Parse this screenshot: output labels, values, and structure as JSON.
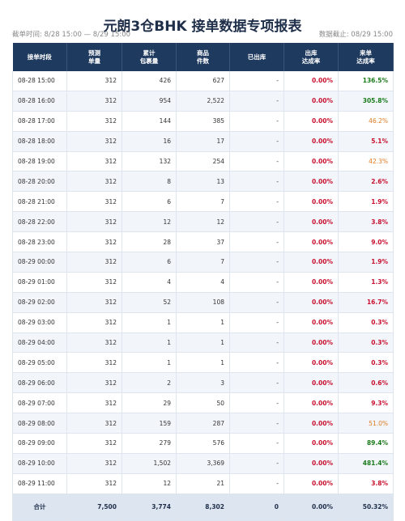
{
  "header": {
    "title": "元朗3仓BHK 接单数据专项报表",
    "period": "截单时间: 8/28 15:00 — 8/29 15:00",
    "cutoff": "数据截止: 08/29 15:00"
  },
  "table": {
    "headers": [
      [
        "接单时段"
      ],
      [
        "预测",
        "单量"
      ],
      [
        "累计",
        "包裹量"
      ],
      [
        "商品",
        "件数"
      ],
      [
        "已出库"
      ],
      [
        "出库",
        "达成率"
      ],
      [
        "来单",
        "达成率"
      ]
    ],
    "rows": [
      [
        "08-28 15:00",
        "312",
        "426",
        "627",
        "-",
        "0.00%",
        "136.5%"
      ],
      [
        "08-28 16:00",
        "312",
        "954",
        "2,522",
        "-",
        "0.00%",
        "305.8%"
      ],
      [
        "08-28 17:00",
        "312",
        "144",
        "385",
        "-",
        "0.00%",
        "46.2%"
      ],
      [
        "08-28 18:00",
        "312",
        "16",
        "17",
        "-",
        "0.00%",
        "5.1%"
      ],
      [
        "08-28 19:00",
        "312",
        "132",
        "254",
        "-",
        "0.00%",
        "42.3%"
      ],
      [
        "08-28 20:00",
        "312",
        "8",
        "13",
        "-",
        "0.00%",
        "2.6%"
      ],
      [
        "08-28 21:00",
        "312",
        "6",
        "7",
        "-",
        "0.00%",
        "1.9%"
      ],
      [
        "08-28 22:00",
        "312",
        "12",
        "12",
        "-",
        "0.00%",
        "3.8%"
      ],
      [
        "08-28 23:00",
        "312",
        "28",
        "37",
        "-",
        "0.00%",
        "9.0%"
      ],
      [
        "08-29 00:00",
        "312",
        "6",
        "7",
        "-",
        "0.00%",
        "1.9%"
      ],
      [
        "08-29 01:00",
        "312",
        "4",
        "4",
        "-",
        "0.00%",
        "1.3%"
      ],
      [
        "08-29 02:00",
        "312",
        "52",
        "108",
        "-",
        "0.00%",
        "16.7%"
      ],
      [
        "08-29 03:00",
        "312",
        "1",
        "1",
        "-",
        "0.00%",
        "0.3%"
      ],
      [
        "08-29 04:00",
        "312",
        "1",
        "1",
        "-",
        "0.00%",
        "0.3%"
      ],
      [
        "08-29 05:00",
        "312",
        "1",
        "1",
        "-",
        "0.00%",
        "0.3%"
      ],
      [
        "08-29 06:00",
        "312",
        "2",
        "3",
        "-",
        "0.00%",
        "0.6%"
      ],
      [
        "08-29 07:00",
        "312",
        "29",
        "50",
        "-",
        "0.00%",
        "9.3%"
      ],
      [
        "08-29 08:00",
        "312",
        "159",
        "287",
        "-",
        "0.00%",
        "51.0%"
      ],
      [
        "08-29 09:00",
        "312",
        "279",
        "576",
        "-",
        "0.00%",
        "89.4%"
      ],
      [
        "08-29 10:00",
        "312",
        "1,502",
        "3,369",
        "-",
        "0.00%",
        "481.4%"
      ],
      [
        "08-29 11:00",
        "312",
        "12",
        "21",
        "-",
        "0.00%",
        "3.8%"
      ]
    ],
    "total": [
      "合计",
      "7,500",
      "3,774",
      "8,302",
      "0",
      "0.00%",
      "50.32%"
    ]
  }
}
